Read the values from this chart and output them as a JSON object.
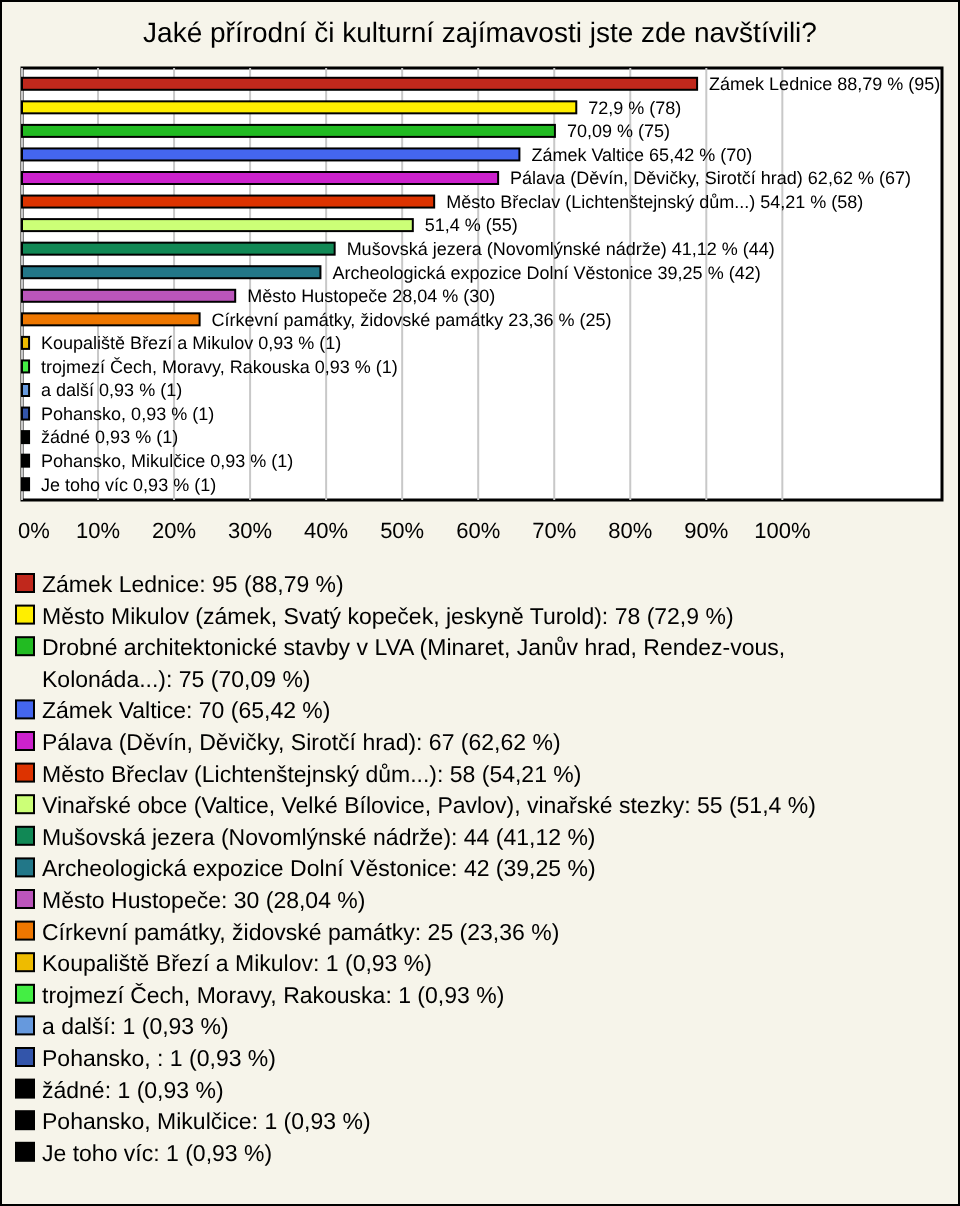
{
  "chart_data": {
    "type": "bar",
    "orientation": "horizontal",
    "title": "Jaké přírodní či kulturní zajímavosti jste zde navštívili?",
    "categories": [
      null,
      null,
      null,
      null,
      null,
      null,
      null,
      null,
      null,
      null,
      null,
      null,
      null,
      null,
      null,
      null,
      null,
      null
    ],
    "values": [
      88.79,
      72.9,
      70.09,
      65.42,
      62.62,
      54.21,
      51.4,
      41.12,
      39.25,
      28.04,
      23.36,
      0.93,
      0.93,
      0.93,
      0.93,
      0.93,
      0.93,
      0.93
    ],
    "colors": [
      "#c0281c",
      "#ffee00",
      "#22bb22",
      "#4466ee",
      "#cc22cc",
      "#dd3300",
      "#ccff77",
      "#118855",
      "#227788",
      "#bb55bb",
      "#ee7700",
      "#eebb00",
      "#44ee44",
      "#6699dd",
      "#3355aa",
      "#000000",
      "#000000",
      "#000000"
    ],
    "value_labels": [
      "Zámek Lednice 88,79 % (95)",
      "72,9 % (78)",
      "70,09 % (75)",
      "Zámek Valtice 65,42 % (70)",
      "Pálava (Děvín, Děvičky, Sirotčí hrad) 62,62 % (67)",
      "Město Břeclav (Lichtenštejnský dům...) 54,21 % (58)",
      "51,4 % (55)",
      "Mušovská jezera (Novomlýnské nádrže) 41,12 % (44)",
      "Archeologická expozice Dolní Věstonice 39,25 % (42)",
      "Město Hustopeče 28,04 % (30)",
      "Církevní památky, židovské památky 23,36 % (25)",
      "Koupaliště Březí a Mikulov 0,93 % (1)",
      "trojmezí Čech, Moravy, Rakouska 0,93 % (1)",
      "a další 0,93 % (1)",
      "Pohansko,  0,93 % (1)",
      "žádné 0,93 % (1)",
      "Pohansko, Mikulčice 0,93 % (1)",
      "Je toho víc 0,93 % (1)"
    ],
    "xlim": [
      0,
      121
    ],
    "xticks": [
      {
        "value": 0,
        "label": "0%"
      },
      {
        "value": 10,
        "label": "10%"
      },
      {
        "value": 20,
        "label": "20%"
      },
      {
        "value": 30,
        "label": "30%"
      },
      {
        "value": 40,
        "label": "40%"
      },
      {
        "value": 50,
        "label": "50%"
      },
      {
        "value": 60,
        "label": "60%"
      },
      {
        "value": 70,
        "label": "70%"
      },
      {
        "value": 80,
        "label": "80%"
      },
      {
        "value": 90,
        "label": "90%"
      },
      {
        "value": 100,
        "label": "100%"
      }
    ],
    "grid": "x",
    "annotations": [
      "Zámek Lednice: 95 (88,79 %)",
      "Město Mikulov (zámek, Svatý kopeček, jeskyně Turold): 78 (72,9 %)",
      "Drobné architektonické stavby v LVA (Minaret, Janův hrad, Rendez-vous, Kolonáda...): 75 (70,09 %)",
      "Zámek Valtice: 70 (65,42 %)",
      "Pálava (Děvín, Děvičky, Sirotčí hrad): 67 (62,62 %)",
      "Město Břeclav (Lichtenštejnský dům...): 58 (54,21 %)",
      "Vinařské obce (Valtice, Velké Bílovice, Pavlov), vinařské stezky: 55 (51,4 %)",
      "Mušovská jezera (Novomlýnské nádrže): 44 (41,12 %)",
      "Archeologická expozice Dolní Věstonice: 42 (39,25 %)",
      "Město Hustopeče: 30 (28,04 %)",
      "Církevní památky, židovské památky: 25 (23,36 %)",
      "Koupaliště Březí a Mikulov: 1 (0,93 %)",
      "trojmezí Čech, Moravy, Rakouska: 1 (0,93 %)",
      "a další: 1 (0,93 %)",
      "Pohansko, : 1 (0,93 %)",
      "žádné: 1 (0,93 %)",
      "Pohansko, Mikulčice: 1 (0,93 %)",
      "Je toho víc: 1 (0,93 %)"
    ]
  }
}
